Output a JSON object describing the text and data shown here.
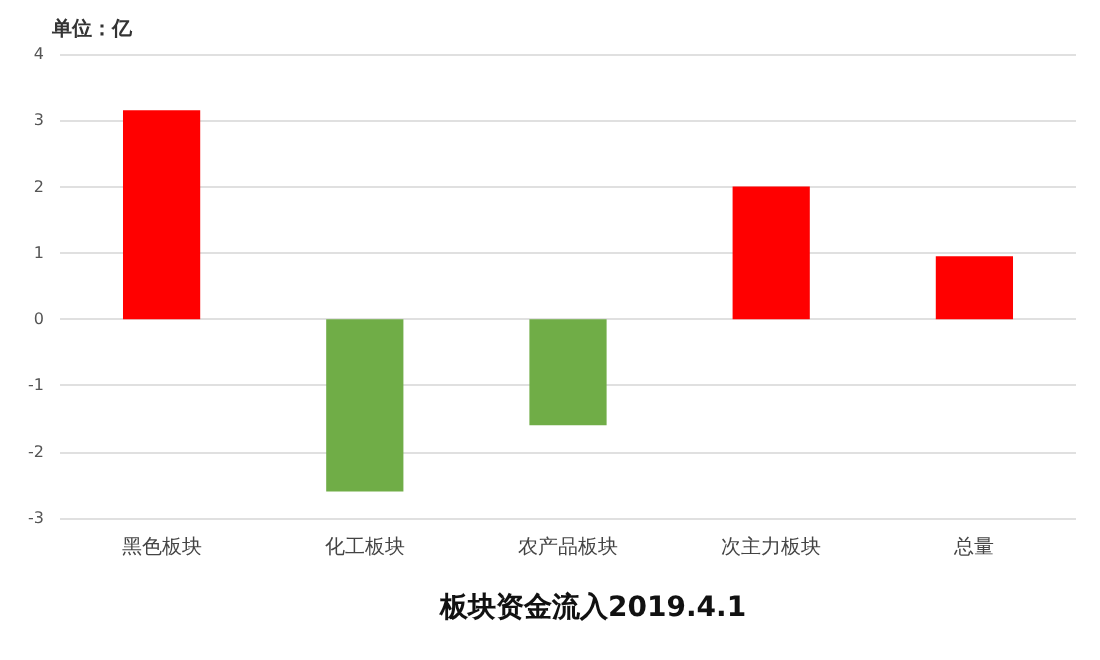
{
  "chart_data": {
    "type": "bar",
    "title": "板块资金流入2019.4.1",
    "ylabel": "单位：亿",
    "categories": [
      "黑色板块",
      "化工板块",
      "农产品板块",
      "次主力板块",
      "总量"
    ],
    "values": [
      3.15,
      -2.6,
      -1.6,
      2.0,
      0.95
    ],
    "colors": [
      "#ff0000",
      "#70ad47",
      "#70ad47",
      "#ff0000",
      "#ff0000"
    ],
    "ylim": [
      -3,
      4
    ],
    "yticks": [
      -3,
      -2,
      -1,
      0,
      1,
      2,
      3,
      4
    ],
    "grid": "y"
  }
}
